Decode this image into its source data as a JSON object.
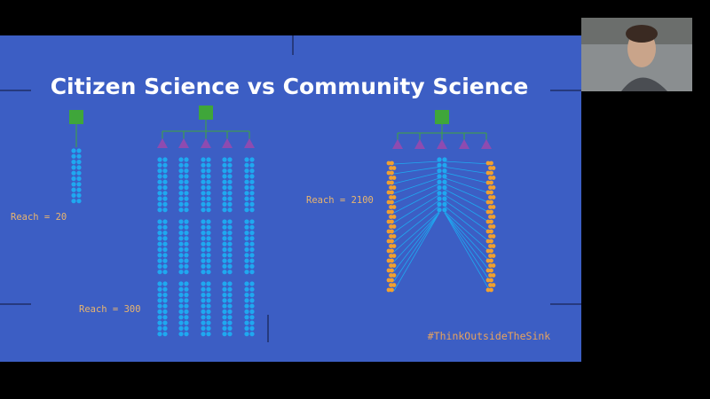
{
  "slide": {
    "title": "Citizen Science vs Community Science",
    "labels": [
      "Reach = 20",
      "Reach = 300",
      "Reach = 2100"
    ],
    "hashtag": "#ThinkOutsideTheSink"
  }
}
